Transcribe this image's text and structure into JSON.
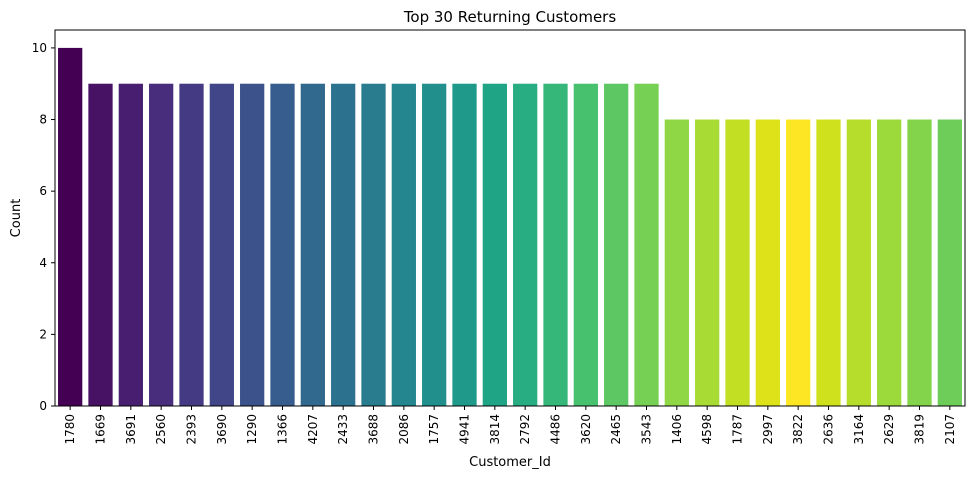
{
  "chart_data": {
    "type": "bar",
    "title": "Top 30 Returning Customers",
    "xlabel": "Customer_Id",
    "ylabel": "Count",
    "ylim": [
      0,
      10.5
    ],
    "yticks": [
      0,
      2,
      4,
      6,
      8,
      10
    ],
    "categories": [
      "1780",
      "1669",
      "3691",
      "2560",
      "2393",
      "3690",
      "1290",
      "1366",
      "4207",
      "2433",
      "3688",
      "2086",
      "1757",
      "4941",
      "3814",
      "2792",
      "4486",
      "3620",
      "2465",
      "3543",
      "1406",
      "4598",
      "1787",
      "2997",
      "3822",
      "2636",
      "3164",
      "2629",
      "3819",
      "2107"
    ],
    "values": [
      10,
      9,
      9,
      9,
      9,
      9,
      9,
      9,
      9,
      9,
      9,
      9,
      9,
      9,
      9,
      9,
      9,
      9,
      9,
      9,
      8,
      8,
      8,
      8,
      8,
      8,
      8,
      8,
      8,
      8
    ],
    "colormap": "viridis",
    "colors": [
      "#440154",
      "#471164",
      "#481f70",
      "#472d7b",
      "#443a83",
      "#404688",
      "#3b528b",
      "#365d8d",
      "#31688e",
      "#2c728e",
      "#287c8e",
      "#24868e",
      "#21908d",
      "#1f9a8a",
      "#20a486",
      "#27ad81",
      "#35b779",
      "#47c16e",
      "#5dc863",
      "#75d054",
      "#8fd744",
      "#a8db34",
      "#c2df23",
      "#dde318",
      "#fde725",
      "#cfe11c",
      "#b6dd2b",
      "#9cd93b",
      "#84d44b",
      "#6ecd59"
    ],
    "grid": false,
    "legend": "none"
  }
}
